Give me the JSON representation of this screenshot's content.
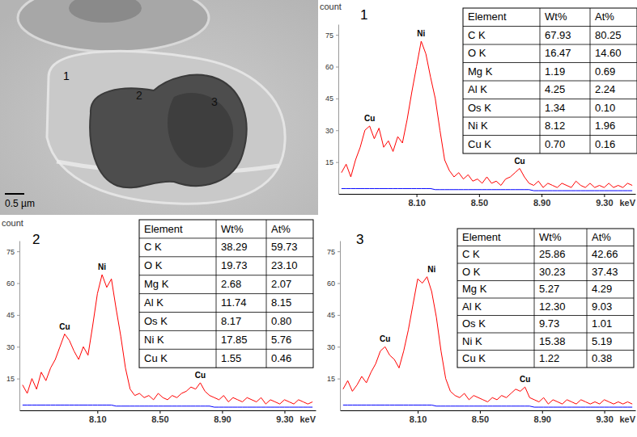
{
  "micrograph": {
    "point_labels": [
      "1",
      "2",
      "3"
    ],
    "scale_bar": "0.5 µm"
  },
  "chart_data": [
    {
      "type": "line",
      "title": "1",
      "x_label": "keV",
      "y_label": "count",
      "grid": false,
      "xlim": [
        7.6,
        9.5
      ],
      "ylim": [
        0,
        80
      ],
      "xticks": [
        {
          "value": 8.1,
          "label": "8.10"
        },
        {
          "value": 8.5,
          "label": "8.50"
        },
        {
          "value": 8.9,
          "label": "8.90"
        },
        {
          "value": 9.3,
          "label": "9.30"
        }
      ],
      "yticks": [
        15,
        30,
        45,
        60,
        75
      ],
      "x": [
        7.62,
        7.65,
        7.68,
        7.71,
        7.74,
        7.77,
        7.8,
        7.83,
        7.86,
        7.89,
        7.92,
        7.95,
        7.98,
        8.01,
        8.04,
        8.07,
        8.1,
        8.13,
        8.16,
        8.19,
        8.22,
        8.25,
        8.28,
        8.31,
        8.34,
        8.37,
        8.4,
        8.43,
        8.46,
        8.49,
        8.52,
        8.55,
        8.58,
        8.61,
        8.64,
        8.67,
        8.7,
        8.73,
        8.76,
        8.79,
        8.82,
        8.85,
        8.88,
        8.91,
        8.94,
        8.97,
        9.0,
        9.03,
        9.06,
        9.09,
        9.12,
        9.15,
        9.18,
        9.21,
        9.24,
        9.27,
        9.3,
        9.33,
        9.36,
        9.39,
        9.42,
        9.45,
        9.48
      ],
      "series": [
        {
          "color": "#ff0000",
          "values": [
            10,
            14,
            8,
            16,
            22,
            30,
            32,
            26,
            31,
            22,
            25,
            20,
            27,
            24,
            35,
            48,
            60,
            72,
            66,
            55,
            45,
            30,
            16,
            11,
            8,
            10,
            7,
            9,
            6,
            7,
            5,
            8,
            5,
            6,
            4,
            7,
            8,
            10,
            12,
            8,
            5,
            4,
            6,
            3,
            5,
            4,
            3,
            5,
            4,
            3,
            6,
            4,
            3,
            5,
            3,
            4,
            3,
            5,
            3,
            4,
            3,
            5,
            4
          ]
        },
        {
          "color": "#0000ff",
          "values": [
            2.5,
            2.5,
            2.5,
            2.5,
            2.5,
            2.5,
            2.5,
            2.5,
            2.5,
            2.5,
            2.5,
            2.5,
            2.5,
            2.5,
            2.5,
            2.5,
            2.5,
            2.5,
            2.5,
            2.5,
            2,
            2,
            2,
            2,
            2,
            2,
            2,
            2,
            2,
            2,
            2,
            2,
            2,
            2,
            2,
            2,
            2,
            2,
            2,
            2,
            2,
            1.5,
            1.5,
            1.5,
            1.5,
            1.5,
            1.5,
            1.5,
            1.5,
            1.5,
            1.5,
            1.5,
            1.5,
            1.5,
            1.5,
            1.5,
            1.5,
            1.5,
            1.5,
            1.5,
            1.5,
            1.5,
            1.5
          ]
        }
      ],
      "annotations": [
        {
          "text": "Cu",
          "x": 7.8,
          "y": 32
        },
        {
          "text": "Ni",
          "x": 8.13,
          "y": 72
        },
        {
          "text": "Cu",
          "x": 8.76,
          "y": 12
        }
      ],
      "table": {
        "header": [
          "Element",
          "Wt%",
          "At%"
        ],
        "rows": [
          [
            "C K",
            "67.93",
            "80.25"
          ],
          [
            "O K",
            "16.47",
            "14.60"
          ],
          [
            "Mg K",
            "1.19",
            "0.69"
          ],
          [
            "Al K",
            "4.25",
            "2.24"
          ],
          [
            "Os K",
            "1.34",
            "0.10"
          ],
          [
            "Ni K",
            "8.12",
            "1.96"
          ],
          [
            "Cu K",
            "0.70",
            "0.16"
          ]
        ]
      }
    },
    {
      "type": "line",
      "title": "2",
      "x_label": "keV",
      "y_label": "count",
      "grid": false,
      "xlim": [
        7.6,
        9.5
      ],
      "ylim": [
        0,
        80
      ],
      "xticks": [
        {
          "value": 8.1,
          "label": "8.10"
        },
        {
          "value": 8.5,
          "label": "8.50"
        },
        {
          "value": 8.9,
          "label": "8.90"
        },
        {
          "value": 9.3,
          "label": "9.30"
        }
      ],
      "yticks": [
        15,
        30,
        45,
        60,
        75
      ],
      "x": [
        7.62,
        7.65,
        7.68,
        7.71,
        7.74,
        7.77,
        7.8,
        7.83,
        7.86,
        7.89,
        7.92,
        7.95,
        7.98,
        8.01,
        8.04,
        8.07,
        8.1,
        8.13,
        8.16,
        8.19,
        8.22,
        8.25,
        8.28,
        8.31,
        8.34,
        8.37,
        8.4,
        8.43,
        8.46,
        8.49,
        8.52,
        8.55,
        8.58,
        8.61,
        8.64,
        8.67,
        8.7,
        8.73,
        8.76,
        8.79,
        8.82,
        8.85,
        8.88,
        8.91,
        8.94,
        8.97,
        9.0,
        9.03,
        9.06,
        9.09,
        9.12,
        9.15,
        9.18,
        9.21,
        9.24,
        9.27,
        9.3,
        9.33,
        9.36,
        9.39,
        9.42,
        9.45,
        9.48
      ],
      "series": [
        {
          "color": "#ff0000",
          "values": [
            12,
            8,
            15,
            10,
            18,
            14,
            20,
            24,
            30,
            36,
            33,
            28,
            24,
            30,
            26,
            40,
            55,
            64,
            58,
            62,
            48,
            35,
            20,
            10,
            7,
            8,
            6,
            7,
            5,
            8,
            6,
            5,
            7,
            6,
            8,
            9,
            11,
            10,
            13,
            9,
            7,
            6,
            5,
            7,
            4,
            6,
            5,
            4,
            6,
            5,
            4,
            6,
            3,
            5,
            4,
            3,
            5,
            4,
            3,
            5,
            4,
            3,
            4
          ]
        },
        {
          "color": "#0000ff",
          "values": [
            2.5,
            2.5,
            2.5,
            2.5,
            2.5,
            2.5,
            2.5,
            2.5,
            2.5,
            2.5,
            2.5,
            2.5,
            2.5,
            2.5,
            2.5,
            2.5,
            2.5,
            2.5,
            2.5,
            2.5,
            2,
            2,
            2,
            2,
            2,
            2,
            2,
            2,
            2,
            2,
            2,
            2,
            2,
            2,
            2,
            2,
            2,
            2,
            2,
            2,
            2,
            1.5,
            1.5,
            1.5,
            1.5,
            1.5,
            1.5,
            1.5,
            1.5,
            1.5,
            1.5,
            1.5,
            1.5,
            1.5,
            1.5,
            1.5,
            1.5,
            1.5,
            1.5,
            1.5,
            1.5,
            1.5,
            1.5
          ]
        }
      ],
      "annotations": [
        {
          "text": "Cu",
          "x": 7.89,
          "y": 36
        },
        {
          "text": "Ni",
          "x": 8.13,
          "y": 64
        },
        {
          "text": "Cu",
          "x": 8.76,
          "y": 13
        }
      ],
      "table": {
        "header": [
          "Element",
          "Wt%",
          "At%"
        ],
        "rows": [
          [
            "C K",
            "38.29",
            "59.73"
          ],
          [
            "O K",
            "19.73",
            "23.10"
          ],
          [
            "Mg K",
            "2.68",
            "2.07"
          ],
          [
            "Al K",
            "11.74",
            "8.15"
          ],
          [
            "Os K",
            "8.17",
            "0.80"
          ],
          [
            "Ni K",
            "17.85",
            "5.76"
          ],
          [
            "Cu K",
            "1.55",
            "0.46"
          ]
        ]
      }
    },
    {
      "type": "line",
      "title": "3",
      "x_label": "keV",
      "grid": false,
      "xlim": [
        7.6,
        9.5
      ],
      "ylim": [
        0,
        80
      ],
      "xticks": [
        {
          "value": 8.1,
          "label": "8.10"
        },
        {
          "value": 8.5,
          "label": "8.50"
        },
        {
          "value": 8.9,
          "label": "8.90"
        },
        {
          "value": 9.3,
          "label": "9.30"
        }
      ],
      "yticks": [
        15,
        30,
        45,
        60,
        75
      ],
      "x": [
        7.62,
        7.65,
        7.68,
        7.71,
        7.74,
        7.77,
        7.8,
        7.83,
        7.86,
        7.89,
        7.92,
        7.95,
        7.98,
        8.01,
        8.04,
        8.07,
        8.1,
        8.13,
        8.16,
        8.19,
        8.22,
        8.25,
        8.28,
        8.31,
        8.34,
        8.37,
        8.4,
        8.43,
        8.46,
        8.49,
        8.52,
        8.55,
        8.58,
        8.61,
        8.64,
        8.67,
        8.7,
        8.73,
        8.76,
        8.79,
        8.82,
        8.85,
        8.88,
        8.91,
        8.94,
        8.97,
        9.0,
        9.03,
        9.06,
        9.09,
        9.12,
        9.15,
        9.18,
        9.21,
        9.24,
        9.27,
        9.3,
        9.33,
        9.36,
        9.39,
        9.42,
        9.45,
        9.48
      ],
      "series": [
        {
          "color": "#ff0000",
          "values": [
            10,
            14,
            9,
            12,
            16,
            13,
            18,
            22,
            28,
            30,
            26,
            24,
            20,
            28,
            38,
            50,
            62,
            60,
            63,
            56,
            44,
            28,
            15,
            9,
            7,
            6,
            8,
            5,
            7,
            6,
            5,
            4,
            6,
            5,
            7,
            6,
            8,
            10,
            9,
            11,
            6,
            5,
            4,
            6,
            3,
            5,
            4,
            3,
            5,
            4,
            3,
            5,
            4,
            3,
            4,
            3,
            5,
            4,
            3,
            4,
            3,
            4,
            3
          ]
        },
        {
          "color": "#0000ff",
          "values": [
            2.5,
            2.5,
            2.5,
            2.5,
            2.5,
            2.5,
            2.5,
            2.5,
            2.5,
            2.5,
            2.5,
            2.5,
            2.5,
            2.5,
            2.5,
            2.5,
            2.5,
            2.5,
            2.5,
            2.5,
            2,
            2,
            2,
            2,
            2,
            2,
            2,
            2,
            2,
            2,
            2,
            2,
            2,
            2,
            2,
            2,
            2,
            2,
            2,
            2,
            2,
            1.5,
            1.5,
            1.5,
            1.5,
            1.5,
            1.5,
            1.5,
            1.5,
            1.5,
            1.5,
            1.5,
            1.5,
            1.5,
            1.5,
            1.5,
            1.5,
            1.5,
            1.5,
            1.5,
            1.5,
            1.5,
            1.5
          ]
        }
      ],
      "annotations": [
        {
          "text": "Cu",
          "x": 7.89,
          "y": 30
        },
        {
          "text": "Ni",
          "x": 8.19,
          "y": 63
        },
        {
          "text": "Cu",
          "x": 8.79,
          "y": 11
        }
      ],
      "table": {
        "header": [
          "Element",
          "Wt%",
          "At%"
        ],
        "rows": [
          [
            "C K",
            "25.86",
            "42.66"
          ],
          [
            "O K",
            "30.23",
            "37.43"
          ],
          [
            "Mg K",
            "5.27",
            "4.29"
          ],
          [
            "Al K",
            "12.30",
            "9.03"
          ],
          [
            "Os K",
            "9.73",
            "1.01"
          ],
          [
            "Ni K",
            "15.38",
            "5.19"
          ],
          [
            "Cu K",
            "1.22",
            "0.38"
          ]
        ]
      }
    }
  ]
}
